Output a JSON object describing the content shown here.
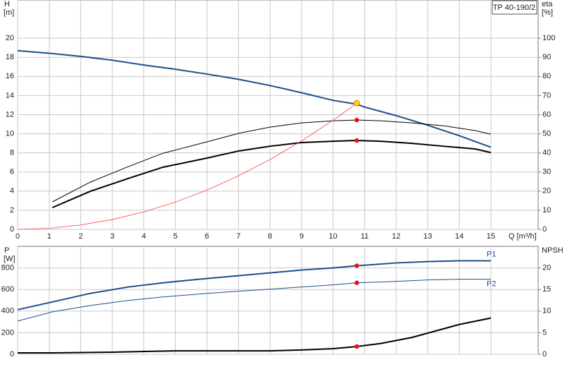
{
  "product": "TP 40-190/2",
  "chart_data": [
    {
      "type": "line",
      "xlabel": "Q [m³/h]",
      "ylabel": "H",
      "yunit": "[m]",
      "y2label": "eta",
      "y2unit": "[%]",
      "xlim": [
        0,
        16.5
      ],
      "xticks": [
        0,
        1,
        2,
        3,
        4,
        5,
        6,
        7,
        8,
        9,
        10,
        11,
        12,
        13,
        14,
        15
      ],
      "xtick_labels": true,
      "ylim": [
        0,
        24
      ],
      "yticks": [
        0,
        2,
        4,
        6,
        8,
        10,
        12,
        14,
        16,
        18,
        20
      ],
      "y2lim": [
        0,
        120
      ],
      "y2ticks": [
        0,
        10,
        20,
        30,
        40,
        50,
        60,
        70,
        80,
        90,
        100
      ],
      "grid": true,
      "series": [
        {
          "color": "#1b4f8c",
          "line_width": 2,
          "axis": "y",
          "x": [
            0,
            1.1,
            2,
            3,
            4,
            5,
            6,
            7,
            8,
            9,
            10,
            10.75,
            11,
            12,
            13,
            14,
            15
          ],
          "values": [
            18.7,
            18.4,
            18.1,
            17.7,
            17.2,
            16.75,
            16.25,
            15.7,
            15.05,
            14.3,
            13.5,
            13.1,
            12.8,
            11.9,
            10.9,
            9.8,
            8.6
          ]
        },
        {
          "color": "#000000",
          "line_width": 1,
          "axis": "y2",
          "x": [
            1.1,
            2.3,
            3.5,
            4.6,
            6,
            7,
            8,
            9,
            10,
            10.75,
            11.5,
            12.5,
            13.5,
            14.5,
            15
          ],
          "values": [
            14.4,
            24.7,
            32.8,
            39.8,
            45.8,
            50.2,
            53.5,
            55.7,
            56.8,
            57.2,
            56.8,
            55.7,
            54.2,
            51.7,
            49.8
          ]
        },
        {
          "color": "#000000",
          "line_width": 2,
          "axis": "y2",
          "x": [
            1.1,
            2.3,
            3.5,
            4.6,
            6,
            7,
            8,
            9,
            10,
            10.75,
            11.5,
            12.5,
            13.5,
            14.5,
            15
          ],
          "values": [
            11.4,
            19.9,
            26.6,
            32.5,
            37.3,
            41,
            43.5,
            45.4,
            46.1,
            46.5,
            46.1,
            45,
            43.5,
            42.1,
            40.2
          ]
        },
        {
          "color": "#ff4040",
          "line_width": 0.8,
          "axis": "y",
          "x": [
            0,
            1,
            2,
            3,
            4,
            5,
            6,
            7,
            8,
            9,
            10,
            10.75
          ],
          "values": [
            0,
            0.11,
            0.46,
            1.03,
            1.83,
            2.86,
            4.11,
            5.6,
            7.31,
            9.25,
            11.42,
            13.2
          ]
        }
      ],
      "points": [
        {
          "x": 10.75,
          "y": 13.2,
          "axis": "y",
          "color": "#ffd21f"
        },
        {
          "x": 10.75,
          "y": 57.2,
          "axis": "y2",
          "color": "#ee1111"
        },
        {
          "x": 10.75,
          "y": 46.5,
          "axis": "y2",
          "color": "#ee1111"
        }
      ]
    },
    {
      "type": "line",
      "ylabel": "P",
      "yunit": "[W]",
      "y2label": "NPSH",
      "xlim": [
        0,
        16.5
      ],
      "xticks": [
        0,
        1,
        2,
        3,
        4,
        5,
        6,
        7,
        8,
        9,
        10,
        11,
        12,
        13,
        14,
        15
      ],
      "xtick_labels": false,
      "ylim": [
        0,
        1000
      ],
      "yticks": [
        0,
        200,
        400,
        600,
        800
      ],
      "y2lim": [
        0,
        25
      ],
      "y2ticks": [
        0,
        5,
        10,
        15,
        20
      ],
      "grid": true,
      "series": [
        {
          "name": "P1",
          "color": "#1b4f8c",
          "line_width": 2,
          "axis": "y",
          "x": [
            0,
            1.1,
            2.3,
            3.5,
            4.6,
            6,
            7,
            8,
            9,
            10,
            10.75,
            12,
            13,
            14,
            15
          ],
          "values": [
            413,
            485,
            564,
            623,
            662,
            702,
            728,
            754,
            780,
            800,
            820,
            846,
            859,
            866,
            866
          ]
        },
        {
          "name": "P2",
          "color": "#1b4f8c",
          "line_width": 1,
          "axis": "y",
          "x": [
            0,
            1.1,
            2.3,
            3.5,
            4.6,
            6,
            7,
            8,
            9,
            10,
            10.75,
            12,
            13,
            14,
            15
          ],
          "values": [
            308,
            393,
            452,
            498,
            531,
            564,
            584,
            603,
            623,
            643,
            662,
            675,
            689,
            695,
            695
          ]
        },
        {
          "color": "#000000",
          "line_width": 2,
          "axis": "y2",
          "x": [
            0,
            1.1,
            3,
            4,
            5,
            6,
            7,
            8,
            9,
            10,
            10.75,
            11.5,
            12.5,
            13.5,
            14,
            15
          ],
          "values": [
            0.33,
            0.33,
            0.5,
            0.65,
            0.8,
            0.8,
            0.8,
            0.8,
            1.0,
            1.3,
            1.8,
            2.5,
            3.9,
            5.9,
            6.9,
            8.4
          ]
        }
      ],
      "points": [
        {
          "x": 10.75,
          "y": 820,
          "axis": "y",
          "color": "#ee1111"
        },
        {
          "x": 10.75,
          "y": 662,
          "axis": "y",
          "color": "#ee1111"
        },
        {
          "x": 10.75,
          "y": 1.8,
          "axis": "y2",
          "color": "#ee1111"
        }
      ]
    }
  ]
}
